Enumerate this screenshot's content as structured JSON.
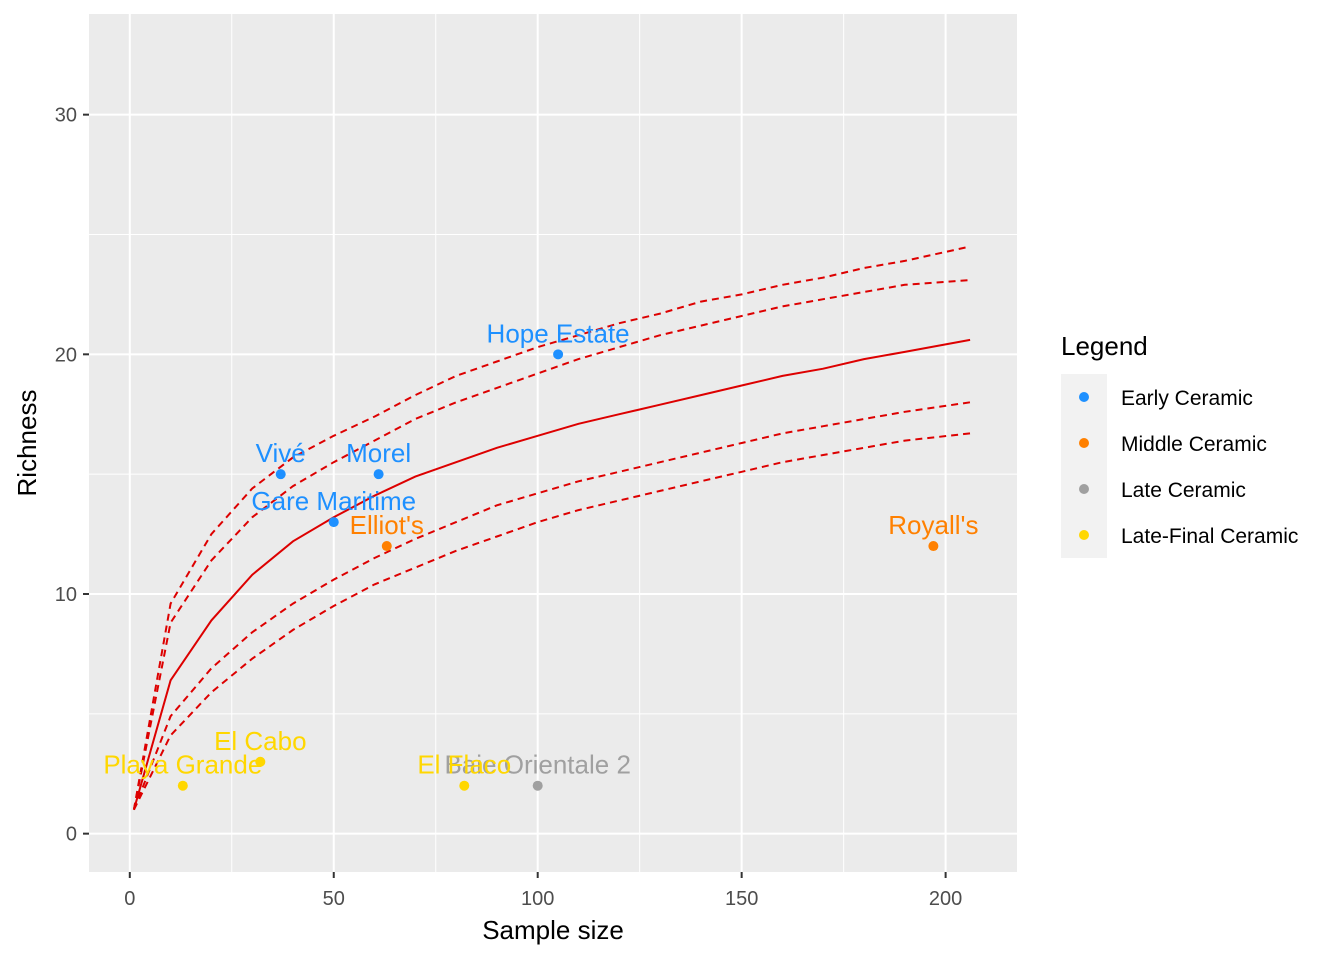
{
  "chart_data": {
    "type": "scatter",
    "xlabel": "Sample size",
    "ylabel": "Richness",
    "xlim": [
      -10,
      217.5
    ],
    "ylim": [
      -1.6,
      34.2
    ],
    "x_ticks": [
      0,
      50,
      100,
      150,
      200
    ],
    "y_ticks": [
      0,
      10,
      20,
      30
    ],
    "grid": true,
    "legend": {
      "title": "Legend",
      "position": "right",
      "entries": [
        {
          "name": "Early Ceramic",
          "color": "#1e90ff"
        },
        {
          "name": "Middle Ceramic",
          "color": "#ff8000"
        },
        {
          "name": "Late Ceramic",
          "color": "#a0a0a0"
        },
        {
          "name": "Late-Final Ceramic",
          "color": "#ffd700"
        }
      ]
    },
    "points": [
      {
        "label": "Hope Estate",
        "x": 105,
        "y": 20,
        "group": "Early Ceramic"
      },
      {
        "label": "Vivé",
        "x": 37,
        "y": 15,
        "group": "Early Ceramic"
      },
      {
        "label": "Morel",
        "x": 61,
        "y": 15,
        "group": "Early Ceramic"
      },
      {
        "label": "Gare Maritime",
        "x": 50,
        "y": 13,
        "group": "Early Ceramic"
      },
      {
        "label": "Elliot's",
        "x": 63,
        "y": 12,
        "group": "Middle Ceramic"
      },
      {
        "label": "Royall's",
        "x": 197,
        "y": 12,
        "group": "Middle Ceramic"
      },
      {
        "label": "Baie Orientale 2",
        "x": 100,
        "y": 2,
        "group": "Late Ceramic"
      },
      {
        "label": "El Cabo",
        "x": 32,
        "y": 3,
        "group": "Late-Final Ceramic"
      },
      {
        "label": "Playa Grande",
        "x": 13,
        "y": 2,
        "group": "Late-Final Ceramic"
      },
      {
        "label": "El Flaco",
        "x": 82,
        "y": 2,
        "group": "Late-Final Ceramic"
      }
    ],
    "rarefaction": {
      "color": "#dd0000",
      "x": [
        1,
        10,
        20,
        30,
        40,
        50,
        60,
        70,
        80,
        90,
        100,
        110,
        120,
        130,
        140,
        150,
        160,
        170,
        180,
        190,
        206
      ],
      "mean": [
        1.0,
        6.4,
        8.9,
        10.8,
        12.2,
        13.2,
        14.1,
        14.9,
        15.5,
        16.1,
        16.6,
        17.1,
        17.5,
        17.9,
        18.3,
        18.7,
        19.1,
        19.4,
        19.8,
        20.1,
        20.6
      ],
      "upper_outer": [
        1.0,
        9.6,
        12.5,
        14.4,
        15.7,
        16.6,
        17.4,
        18.3,
        19.1,
        19.7,
        20.3,
        20.8,
        21.3,
        21.7,
        22.2,
        22.5,
        22.9,
        23.2,
        23.6,
        23.9,
        24.5
      ],
      "upper_inner": [
        1.0,
        8.8,
        11.4,
        13.2,
        14.5,
        15.5,
        16.4,
        17.3,
        18.0,
        18.6,
        19.2,
        19.8,
        20.3,
        20.8,
        21.2,
        21.6,
        22.0,
        22.3,
        22.6,
        22.9,
        23.1
      ],
      "lower_inner": [
        1.0,
        4.9,
        6.9,
        8.4,
        9.6,
        10.6,
        11.5,
        12.3,
        13.0,
        13.7,
        14.2,
        14.7,
        15.1,
        15.5,
        15.9,
        16.3,
        16.7,
        17.0,
        17.3,
        17.6,
        18.0
      ],
      "lower_outer": [
        1.0,
        4.1,
        5.9,
        7.3,
        8.5,
        9.5,
        10.4,
        11.1,
        11.8,
        12.4,
        13.0,
        13.5,
        13.9,
        14.3,
        14.7,
        15.1,
        15.5,
        15.8,
        16.1,
        16.4,
        16.7
      ]
    }
  }
}
